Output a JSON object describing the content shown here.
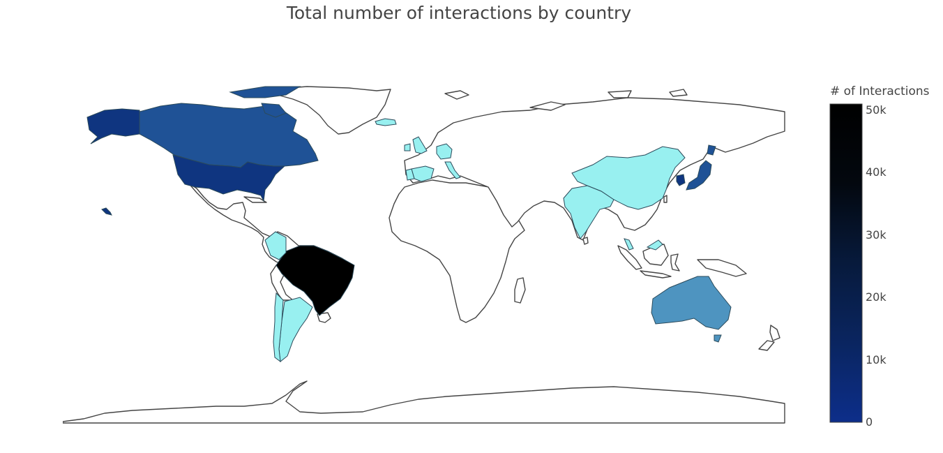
{
  "title": "Total number of interactions by country",
  "colorbar": {
    "title": "# of Interactions",
    "ticks": [
      "0",
      "10k",
      "20k",
      "30k",
      "40k",
      "50k"
    ],
    "max": 51000,
    "gradient": [
      "#0d2e8a",
      "#0a2560",
      "#071a3c",
      "#03080f",
      "#000000"
    ]
  },
  "colors": {
    "land_default": "#ffffff",
    "coastline": "#444444",
    "low_value": "#98f0f0"
  },
  "map_data": {
    "type": "choropleth",
    "projection": "equirectangular",
    "regions": [
      {
        "name": "Brazil",
        "value": 51000,
        "color": "#000000"
      },
      {
        "name": "United States",
        "value": 12000,
        "color": "#0f3580"
      },
      {
        "name": "Canada",
        "value": 9000,
        "color": "#1f5296"
      },
      {
        "name": "Alaska",
        "value": 12000,
        "color": "#0f3580"
      },
      {
        "name": "South Korea",
        "value": 12000,
        "color": "#0f3580"
      },
      {
        "name": "Japan",
        "value": 9000,
        "color": "#1f5296"
      },
      {
        "name": "Australia",
        "value": 5000,
        "color": "#4e94c0"
      },
      {
        "name": "Argentina",
        "value": 300,
        "color": "#98f0f0"
      },
      {
        "name": "Chile",
        "value": 300,
        "color": "#98f0f0"
      },
      {
        "name": "Colombia",
        "value": 300,
        "color": "#98f0f0"
      },
      {
        "name": "China",
        "value": 300,
        "color": "#98f0f0"
      },
      {
        "name": "India",
        "value": 300,
        "color": "#98f0f0"
      },
      {
        "name": "Spain",
        "value": 300,
        "color": "#98f0f0"
      },
      {
        "name": "Portugal",
        "value": 300,
        "color": "#98f0f0"
      },
      {
        "name": "United Kingdom",
        "value": 300,
        "color": "#98f0f0"
      },
      {
        "name": "Germany",
        "value": 300,
        "color": "#98f0f0"
      },
      {
        "name": "Italy",
        "value": 300,
        "color": "#98f0f0"
      },
      {
        "name": "Iceland",
        "value": 300,
        "color": "#98f0f0"
      },
      {
        "name": "Malaysia",
        "value": 300,
        "color": "#98f0f0"
      },
      {
        "name": "Philippines",
        "value": 300,
        "color": "#98f0f0"
      }
    ]
  }
}
